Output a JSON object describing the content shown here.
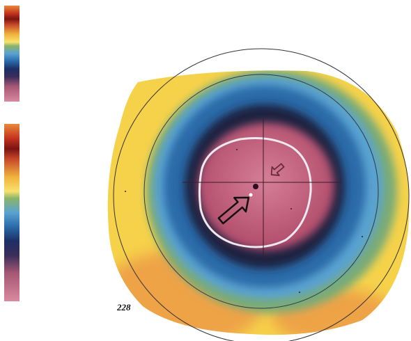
{
  "colors": {
    "yellow": "#f6d24a",
    "orange": "#eea347",
    "green": "#79ab76",
    "light_blue": "#5aa3d1",
    "blue": "#2a6aa8",
    "dark_navy": "#1c2440",
    "pink": "#c5607a",
    "light_pink": "#d67f98",
    "white_ring": "#eaeaf0"
  },
  "icons": {
    "pupil_arrow": "arrow-pointing-up-right",
    "apex_arrow": "arrow-pointing-down-left"
  },
  "label": "228"
}
